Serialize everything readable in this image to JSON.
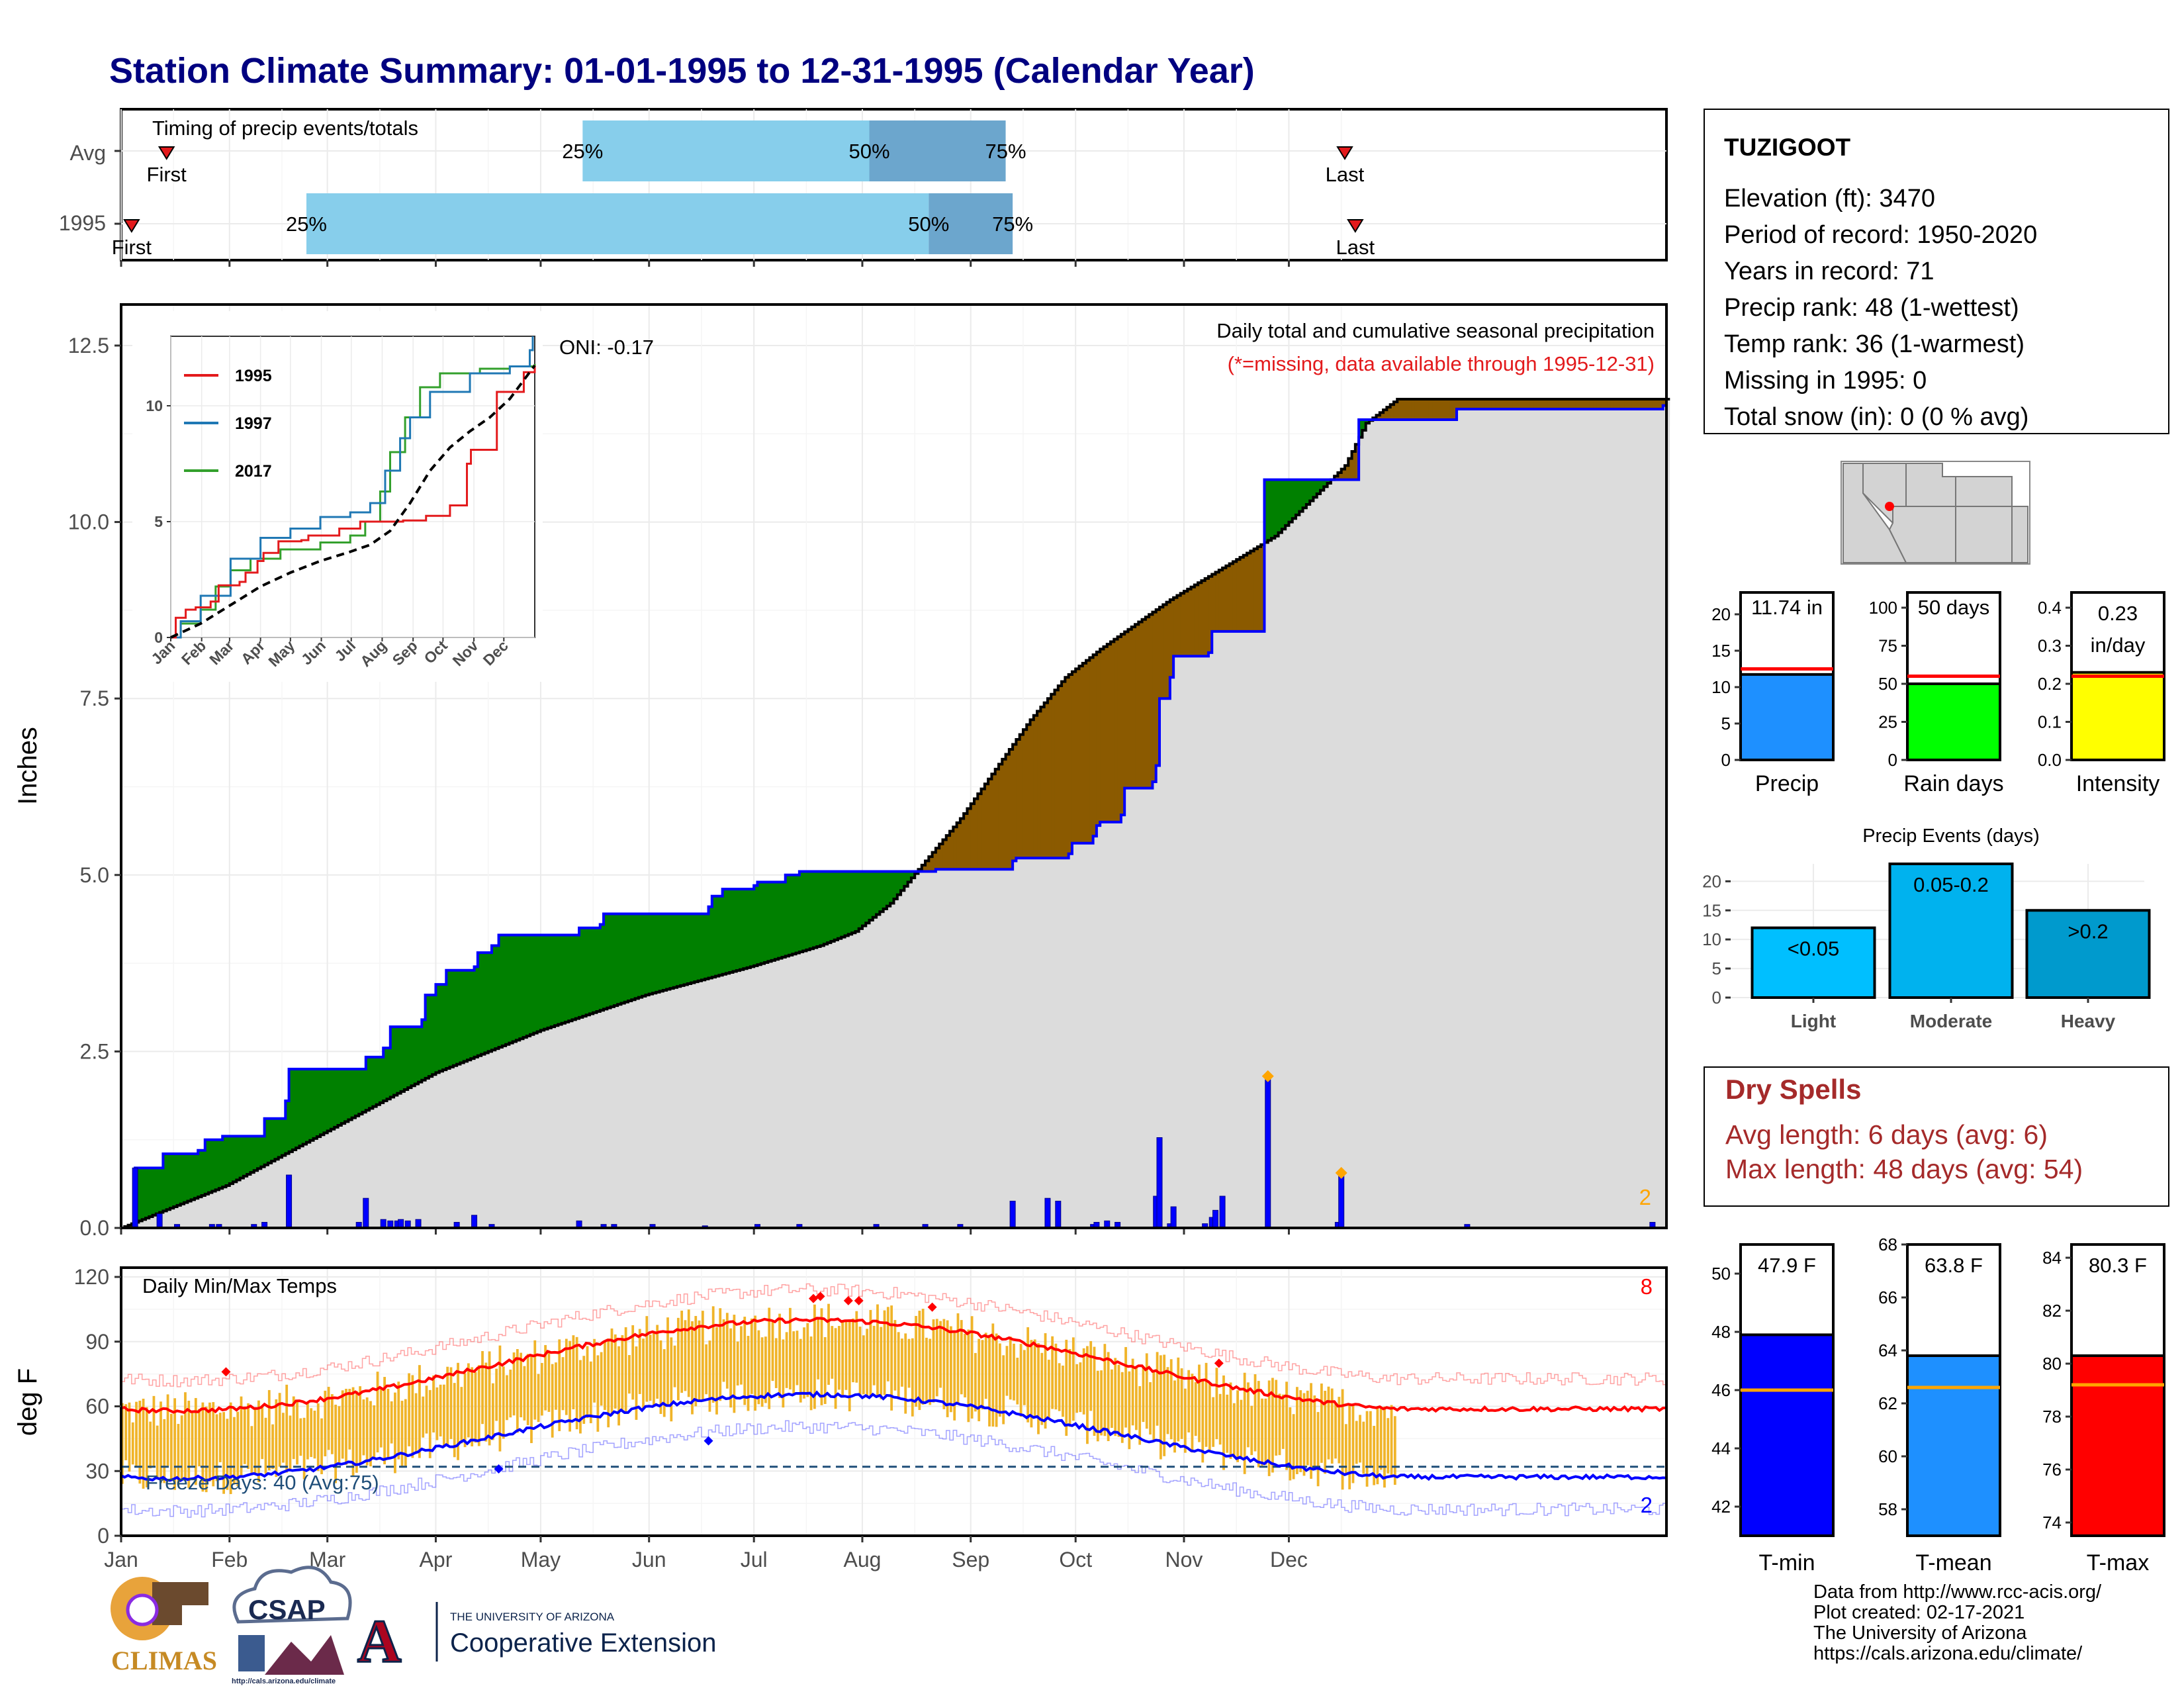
{
  "title": "Station Climate Summary: 01-01-1995 to 12-31-1995 (Calendar Year)",
  "colors": {
    "title": "#000080",
    "q1": "#87CEEB",
    "q2": "#6CA6CD",
    "marker": "#E31A1C",
    "green": "#008000",
    "brown": "#8B5A00",
    "gray": "#DCDCDC",
    "blue": "#0000FF",
    "precip_bar": "#1E90FF",
    "raindays_bar": "#00FF00",
    "intensity_bar": "#FFFF00",
    "light": "#00BFFF",
    "moderate": "#00B2EE",
    "heavy": "#009ACD",
    "orange": "#FFA500",
    "dry_spells": "#A52A2A",
    "temp_bar": "#F0B429",
    "tmean": "#1E90FF",
    "tmax": "#FF0000",
    "tmin": "#0000FF"
  },
  "timing": {
    "title": "Timing of precip events/totals",
    "rows": [
      {
        "label": "Avg",
        "first": 13,
        "q25": 132,
        "q50": 214,
        "q75": 253,
        "last": 350,
        "first_label": "First",
        "last_label": "Last"
      },
      {
        "label": "1995",
        "first": 3,
        "q25": 53,
        "q50": 231,
        "q75": 255,
        "last": 353,
        "first_label": "First",
        "last_label": "Last"
      }
    ],
    "pct_labels": [
      "25%",
      "50%",
      "75%"
    ]
  },
  "precip": {
    "ylabel": "Inches",
    "yticks": [
      "0.0",
      "2.5",
      "5.0",
      "7.5",
      "10.0",
      "12.5"
    ],
    "label1": "Daily total and cumulative seasonal precipitation",
    "label2": "(*=missing, data available through 1995-12-31)",
    "oni": "ONI: -0.17",
    "corner_count": "2",
    "ylim": [
      0,
      13
    ],
    "cumulative_obs": [
      [
        0,
        0
      ],
      [
        3,
        0
      ],
      [
        4,
        0.85
      ],
      [
        11,
        0.85
      ],
      [
        12,
        1.05
      ],
      [
        22,
        1.1
      ],
      [
        24,
        1.25
      ],
      [
        29,
        1.3
      ],
      [
        40,
        1.3
      ],
      [
        41,
        1.55
      ],
      [
        47,
        1.8
      ],
      [
        48,
        2.25
      ],
      [
        69,
        2.25
      ],
      [
        70,
        2.42
      ],
      [
        75,
        2.55
      ],
      [
        77,
        2.85
      ],
      [
        86,
        2.95
      ],
      [
        87,
        3.3
      ],
      [
        90,
        3.45
      ],
      [
        93,
        3.65
      ],
      [
        101,
        3.7
      ],
      [
        102,
        3.9
      ],
      [
        106,
        4.0
      ],
      [
        108,
        4.15
      ],
      [
        130,
        4.15
      ],
      [
        131,
        4.25
      ],
      [
        137,
        4.3
      ],
      [
        138,
        4.45
      ],
      [
        168,
        4.55
      ],
      [
        169,
        4.7
      ],
      [
        172,
        4.8
      ],
      [
        181,
        4.85
      ],
      [
        182,
        4.9
      ],
      [
        190,
        5.0
      ],
      [
        194,
        5.05
      ],
      [
        232,
        5.05
      ],
      [
        233,
        5.08
      ],
      [
        255,
        5.2
      ],
      [
        256,
        5.24
      ],
      [
        271,
        5.3
      ],
      [
        272,
        5.45
      ],
      [
        278,
        5.55
      ],
      [
        279,
        5.7
      ],
      [
        280,
        5.75
      ],
      [
        286,
        5.85
      ],
      [
        287,
        6.23
      ],
      [
        295,
        6.32
      ],
      [
        296,
        6.55
      ],
      [
        297,
        7.5
      ],
      [
        300,
        7.8
      ],
      [
        301,
        8.1
      ],
      [
        311,
        8.15
      ],
      [
        312,
        8.45
      ],
      [
        326,
        8.45
      ],
      [
        327,
        10.6
      ],
      [
        353,
        10.6
      ],
      [
        354,
        11.45
      ],
      [
        381,
        11.45
      ],
      [
        382,
        11.6
      ],
      [
        440,
        11.6
      ],
      [
        441,
        11.65
      ]
    ],
    "cumulative_avg": [
      [
        0,
        0
      ],
      [
        30,
        0.6
      ],
      [
        60,
        1.4
      ],
      [
        90,
        2.2
      ],
      [
        120,
        2.8
      ],
      [
        150,
        3.3
      ],
      [
        180,
        3.7
      ],
      [
        200,
        4.0
      ],
      [
        210,
        4.2
      ],
      [
        220,
        4.6
      ],
      [
        230,
        5.2
      ],
      [
        240,
        5.8
      ],
      [
        250,
        6.5
      ],
      [
        260,
        7.2
      ],
      [
        270,
        7.8
      ],
      [
        280,
        8.2
      ],
      [
        290,
        8.55
      ],
      [
        300,
        8.9
      ],
      [
        310,
        9.2
      ],
      [
        320,
        9.5
      ],
      [
        330,
        9.8
      ],
      [
        340,
        10.3
      ],
      [
        350,
        10.8
      ],
      [
        356,
        11.4
      ],
      [
        365,
        11.74
      ]
    ],
    "daily_bars": [
      [
        4,
        0.85
      ],
      [
        11,
        0.2
      ],
      [
        16,
        0.05
      ],
      [
        26,
        0.05
      ],
      [
        28,
        0.05
      ],
      [
        38,
        0.05
      ],
      [
        41,
        0.08
      ],
      [
        48,
        0.75
      ],
      [
        68,
        0.08
      ],
      [
        70,
        0.42
      ],
      [
        75,
        0.12
      ],
      [
        77,
        0.1
      ],
      [
        79,
        0.1
      ],
      [
        80,
        0.12
      ],
      [
        82,
        0.1
      ],
      [
        85,
        0.12
      ],
      [
        96,
        0.08
      ],
      [
        101,
        0.18
      ],
      [
        106,
        0.05
      ],
      [
        131,
        0.1
      ],
      [
        138,
        0.05
      ],
      [
        141,
        0.05
      ],
      [
        152,
        0.05
      ],
      [
        167,
        0.03
      ],
      [
        182,
        0.05
      ],
      [
        194,
        0.05
      ],
      [
        216,
        0.05
      ],
      [
        230,
        0.05
      ],
      [
        240,
        0.05
      ],
      [
        255,
        0.38
      ],
      [
        265,
        0.42
      ],
      [
        268,
        0.38
      ],
      [
        278,
        0.05
      ],
      [
        279,
        0.08
      ],
      [
        282,
        0.1
      ],
      [
        285,
        0.08
      ],
      [
        296,
        0.45
      ],
      [
        297,
        1.28
      ],
      [
        300,
        0.06
      ],
      [
        301,
        0.3
      ],
      [
        310,
        0.06
      ],
      [
        312,
        0.15
      ],
      [
        313,
        0.25
      ],
      [
        315,
        0.45
      ],
      [
        328,
        2.1
      ],
      [
        348,
        0.08
      ],
      [
        349,
        0.75
      ],
      [
        385,
        0.05
      ],
      [
        438,
        0.08
      ]
    ],
    "missing_markers": [
      [
        328,
        2.15
      ],
      [
        349,
        0.78
      ]
    ]
  },
  "inset": {
    "xticks": [
      "Jan",
      "Feb",
      "Mar",
      "Apr",
      "May",
      "Jun",
      "Jul",
      "Aug",
      "Sep",
      "Oct",
      "Nov",
      "Dec"
    ],
    "yticks": [
      "0",
      "5",
      "10"
    ],
    "legend": [
      {
        "name": "1995",
        "color": "#E31A1C"
      },
      {
        "name": "1997",
        "color": "#1F78B4"
      },
      {
        "name": "2017",
        "color": "#33A02C"
      }
    ],
    "series": {
      "1995": [
        [
          0,
          0
        ],
        [
          5,
          0.85
        ],
        [
          15,
          1.2
        ],
        [
          25,
          1.3
        ],
        [
          40,
          1.55
        ],
        [
          48,
          2.25
        ],
        [
          69,
          2.4
        ],
        [
          75,
          2.8
        ],
        [
          87,
          3.3
        ],
        [
          93,
          3.65
        ],
        [
          108,
          4.15
        ],
        [
          131,
          4.2
        ],
        [
          138,
          4.4
        ],
        [
          169,
          4.7
        ],
        [
          190,
          5.0
        ],
        [
          233,
          5.05
        ],
        [
          256,
          5.25
        ],
        [
          280,
          5.7
        ],
        [
          297,
          7.5
        ],
        [
          301,
          8.1
        ],
        [
          327,
          10.6
        ],
        [
          354,
          11.45
        ],
        [
          365,
          11.74
        ]
      ],
      "1997": [
        [
          0,
          0
        ],
        [
          10,
          0.7
        ],
        [
          30,
          1.8
        ],
        [
          60,
          3.4
        ],
        [
          90,
          4.3
        ],
        [
          120,
          4.7
        ],
        [
          150,
          5.2
        ],
        [
          180,
          5.4
        ],
        [
          200,
          5.8
        ],
        [
          215,
          7.2
        ],
        [
          230,
          8.6
        ],
        [
          240,
          9.5
        ],
        [
          260,
          10.6
        ],
        [
          300,
          11.4
        ],
        [
          340,
          11.7
        ],
        [
          360,
          12.4
        ],
        [
          363,
          13.0
        ]
      ],
      "2017": [
        [
          0,
          0
        ],
        [
          10,
          0.6
        ],
        [
          30,
          1.2
        ],
        [
          45,
          2.2
        ],
        [
          60,
          2.9
        ],
        [
          80,
          3.4
        ],
        [
          110,
          3.8
        ],
        [
          150,
          4.1
        ],
        [
          180,
          4.4
        ],
        [
          195,
          5.0
        ],
        [
          210,
          6.3
        ],
        [
          220,
          8.0
        ],
        [
          235,
          9.5
        ],
        [
          250,
          10.8
        ],
        [
          270,
          11.4
        ],
        [
          310,
          11.6
        ],
        [
          340,
          11.7
        ],
        [
          365,
          11.8
        ]
      ],
      "avg": [
        [
          0,
          0
        ],
        [
          30,
          0.6
        ],
        [
          60,
          1.4
        ],
        [
          90,
          2.2
        ],
        [
          120,
          2.8
        ],
        [
          150,
          3.3
        ],
        [
          180,
          3.7
        ],
        [
          200,
          4.0
        ],
        [
          220,
          4.6
        ],
        [
          240,
          5.8
        ],
        [
          260,
          7.2
        ],
        [
          280,
          8.2
        ],
        [
          300,
          8.9
        ],
        [
          320,
          9.5
        ],
        [
          340,
          10.3
        ],
        [
          365,
          11.74
        ]
      ]
    }
  },
  "station": {
    "name": "TUZIGOOT",
    "lines": [
      "Elevation (ft): 3470",
      "Period of record: 1950-2020",
      "Years in record: 71",
      "Precip rank: 48 (1-wettest)",
      "Temp rank: 36 (1-warmest)",
      "Missing in 1995: 0",
      "Total snow (in): 0 (0 % avg)"
    ]
  },
  "summary_bars": [
    {
      "label": "Precip",
      "value_label": "11.74 in",
      "value": 11.74,
      "avg": 12.5,
      "max": 23,
      "yticks": [
        "0",
        "5",
        "10",
        "15",
        "20"
      ],
      "tick_values": [
        0,
        5,
        10,
        15,
        20
      ]
    },
    {
      "label": "Rain days",
      "value_label": "50 days",
      "value": 50,
      "avg": 55,
      "max": 110,
      "yticks": [
        "0",
        "25",
        "50",
        "75",
        "100"
      ],
      "tick_values": [
        0,
        25,
        50,
        75,
        100
      ]
    },
    {
      "label": "Intensity",
      "value_label_1": "0.23",
      "value_label_2": "in/day",
      "value": 0.23,
      "avg": 0.22,
      "max": 0.44,
      "yticks": [
        "0.0",
        "0.1",
        "0.2",
        "0.3",
        "0.4"
      ],
      "tick_values": [
        0,
        0.1,
        0.2,
        0.3,
        0.4
      ]
    }
  ],
  "events": {
    "title": "Precip Events (days)",
    "yticks": [
      "0",
      "5",
      "10",
      "15",
      "20"
    ],
    "categories": [
      "Light",
      "Moderate",
      "Heavy"
    ],
    "values": [
      12,
      23,
      15
    ],
    "labels": [
      "<0.05",
      "0.05-0.2",
      ">0.2"
    ],
    "ylim": [
      0,
      23
    ]
  },
  "dry_spells": {
    "title": "Dry Spells",
    "avg_length": "Avg length: 6 days (avg: 6)",
    "max_length": "Max length: 48 days (avg: 54)"
  },
  "temps": {
    "ylabel": "deg F",
    "title": "Daily Min/Max Temps",
    "yticks": [
      "0",
      "30",
      "60",
      "90",
      "120"
    ],
    "months": [
      "Jan",
      "Feb",
      "Mar",
      "Apr",
      "May",
      "Jun",
      "Jul",
      "Aug",
      "Sep",
      "Oct",
      "Nov",
      "Dec"
    ],
    "freeze_days": "Freeze Days: 40 (Avg:75)",
    "count_high": "8",
    "count_low": "2",
    "freeze_line": 32
  },
  "temp_summary": [
    {
      "label": "T-min",
      "value_label": "47.9 F",
      "value": 47.9,
      "avg": 46.0,
      "min": 41,
      "max": 51,
      "yticks": [
        "42",
        "44",
        "46",
        "48",
        "50"
      ],
      "tick_values": [
        42,
        44,
        46,
        48,
        50
      ]
    },
    {
      "label": "T-mean",
      "value_label": "63.8 F",
      "value": 63.8,
      "avg": 62.6,
      "min": 57,
      "max": 68,
      "yticks": [
        "58",
        "60",
        "62",
        "64",
        "66",
        "68"
      ],
      "tick_values": [
        58,
        60,
        62,
        64,
        66,
        68
      ]
    },
    {
      "label": "T-max",
      "value_label": "80.3 F",
      "value": 80.3,
      "avg": 79.2,
      "min": 73.5,
      "max": 84.5,
      "yticks": [
        "74",
        "76",
        "78",
        "80",
        "82",
        "84"
      ],
      "tick_values": [
        74,
        76,
        78,
        80,
        82,
        84
      ]
    }
  ],
  "footer": {
    "lines": [
      "Data from http://www.rcc-acis.org/",
      "Plot created: 02-17-2021",
      "The University of Arizona",
      "https://cals.arizona.edu/climate/"
    ]
  },
  "logos": {
    "climas": "CLIMAS",
    "csap": "CSAP",
    "csap_url": "http://cals.arizona.edu/climate",
    "ua_line1": "THE UNIVERSITY OF ARIZONA",
    "ua_line2": "Cooperative Extension",
    "ua_letter": "A"
  }
}
